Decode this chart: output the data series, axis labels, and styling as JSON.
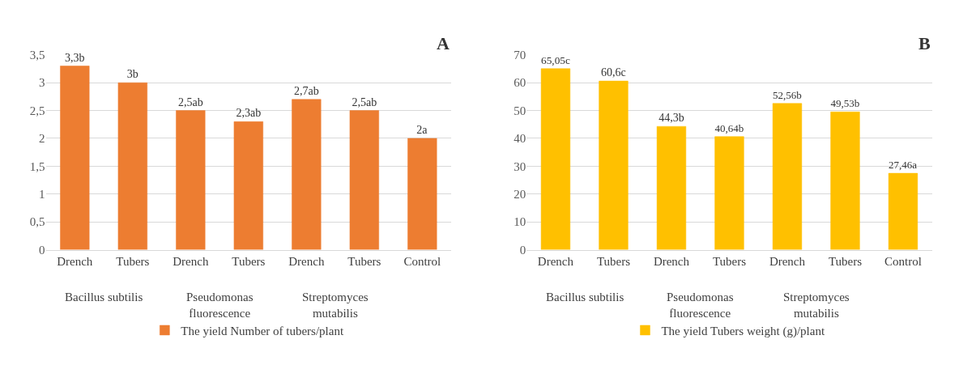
{
  "chart_data": [
    {
      "type": "bar",
      "categories": [
        "Drench",
        "Tubers",
        "Drench",
        "Tubers",
        "Drench",
        "Tubers",
        "Control"
      ],
      "series": [
        {
          "name": "The yield Number of tubers/plant",
          "color": "#ed7d31",
          "values": [
            3.3,
            3,
            2.5,
            2.3,
            2.7,
            2.5,
            2
          ],
          "value_labels": [
            "3,3b",
            "3b",
            "2,5ab",
            "2,3ab",
            "2,7ab",
            "2,5ab",
            "2a"
          ]
        }
      ],
      "ylim": [
        0,
        3.5
      ],
      "yticks": [
        0,
        {
          "value": 0.5,
          "label": "0,5"
        },
        1,
        {
          "value": 1.5,
          "label": "1,5"
        },
        2,
        {
          "value": 2.5,
          "label": "2,5"
        },
        3,
        {
          "value": 3.5,
          "label": "3,5"
        }
      ],
      "grid": "y",
      "legend": "bottom",
      "annotations": [
        "Bacillus subtilis",
        "Pseudomonas fluorescence",
        "Streptomyces mutabilis",
        "A"
      ]
    },
    {
      "type": "bar",
      "categories": [
        "Drench",
        "Tubers",
        "Drench",
        "Tubers",
        "Drench",
        "Tubers",
        "Control"
      ],
      "series": [
        {
          "name": "The yield Tubers weight (g)/plant",
          "color": "#ffc000",
          "values": [
            65.05,
            60.6,
            44.3,
            40.64,
            52.56,
            49.53,
            27.46
          ],
          "value_labels": [
            "65,05c",
            "60,6c",
            "44,3b",
            "40,64b",
            "52,56b",
            "49,53b",
            "27,46a"
          ]
        }
      ],
      "ylim": [
        0,
        70
      ],
      "yticks": [
        0,
        10,
        20,
        30,
        40,
        50,
        60,
        70
      ],
      "grid": "y",
      "legend": "bottom",
      "annotations": [
        "Bacillus subtilis",
        "Pseudomonas fluorescence",
        "Streptomyces mutabilis",
        "B"
      ]
    }
  ]
}
